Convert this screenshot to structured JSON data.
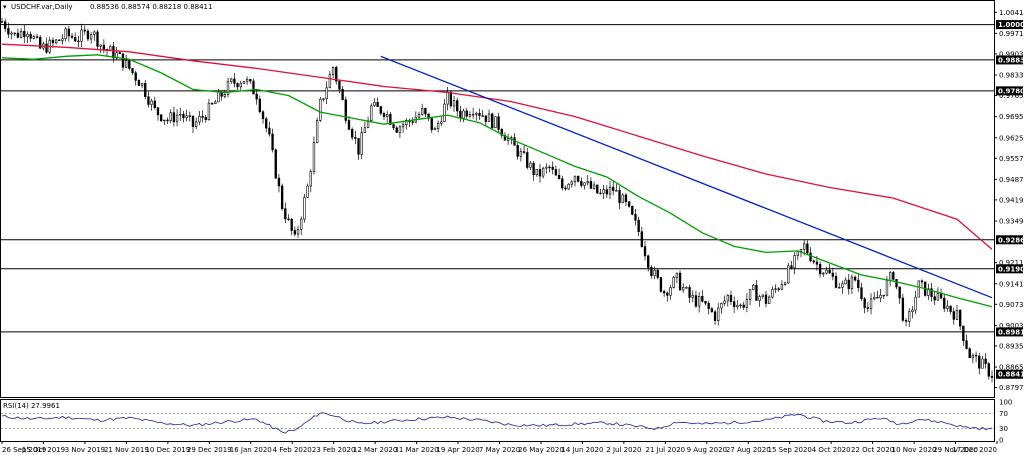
{
  "header": {
    "symbol": "USDCHF.var,Daily",
    "ohlc": "0.88536 0.88574 0.88218 0.88411"
  },
  "rsi": {
    "label": "RSI(14) 27.9961"
  },
  "colors": {
    "candle": "#000000",
    "ma_fast": "#00a000",
    "ma_slow": "#e0103a",
    "trend": "#0020d0",
    "rsi_line": "#1a1aa0",
    "level_bg": "#000000",
    "current_bg": "#000000"
  },
  "chart_data": {
    "type": "candlestick",
    "title": "USDCHF.var,Daily",
    "price_axis_ticks": [
      "1.00410",
      "0.99710",
      "0.99030",
      "0.98330",
      "0.97650",
      "0.96950",
      "0.96250",
      "0.95570",
      "0.94870",
      "0.94190",
      "0.93490",
      "0.92110",
      "0.91410",
      "0.90730",
      "0.90030",
      "0.89350",
      "0.88650",
      "0.87970"
    ],
    "horizontal_levels": [
      "1.00001",
      "0.98830",
      "0.97805",
      "0.92868",
      "0.91906",
      "0.89814"
    ],
    "current_price": "0.88411",
    "ylim": [
      0.8769,
      1.0075
    ],
    "x_labels": [
      "26 Sep 2019",
      "15 Oct 2019",
      "3 Nov 2019",
      "21 Nov 2019",
      "10 Dec 2019",
      "29 Dec 2019",
      "16 Jan 2020",
      "4 Feb 2020",
      "23 Feb 2020",
      "12 Mar 2020",
      "31 Mar 2020",
      "19 Apr 2020",
      "7 May 2020",
      "26 May 2020",
      "14 Jun 2020",
      "2 Jul 2020",
      "21 Jul 2020",
      "9 Aug 2020",
      "27 Aug 2020",
      "15 Sep 2020",
      "4 Oct 2020",
      "22 Oct 2020",
      "10 Nov 2020",
      "29 Nov 2020",
      "17 Dec 2020"
    ],
    "close_path": [
      [
        0,
        1.001
      ],
      [
        4,
        0.9965
      ],
      [
        8,
        0.9985
      ],
      [
        12,
        0.992
      ],
      [
        16,
        0.9935
      ],
      [
        20,
        0.9965
      ],
      [
        24,
        0.9955
      ],
      [
        28,
        0.998
      ],
      [
        32,
        0.992
      ],
      [
        36,
        0.99
      ],
      [
        40,
        0.9855
      ],
      [
        44,
        0.98
      ],
      [
        48,
        0.9715
      ],
      [
        52,
        0.9685
      ],
      [
        56,
        0.9705
      ],
      [
        60,
        0.9665
      ],
      [
        64,
        0.9705
      ],
      [
        68,
        0.9755
      ],
      [
        72,
        0.9805
      ],
      [
        76,
        0.982
      ],
      [
        80,
        0.977
      ],
      [
        84,
        0.962
      ],
      [
        88,
        0.94
      ],
      [
        92,
        0.9285
      ],
      [
        96,
        0.946
      ],
      [
        100,
        0.9735
      ],
      [
        104,
        0.986
      ],
      [
        108,
        0.9705
      ],
      [
        112,
        0.9585
      ],
      [
        116,
        0.9725
      ],
      [
        120,
        0.9715
      ],
      [
        124,
        0.966
      ],
      [
        128,
        0.968
      ],
      [
        132,
        0.971
      ],
      [
        136,
        0.9645
      ],
      [
        140,
        0.9755
      ],
      [
        144,
        0.9705
      ],
      [
        148,
        0.9725
      ],
      [
        152,
        0.9695
      ],
      [
        156,
        0.9665
      ],
      [
        160,
        0.9605
      ],
      [
        164,
        0.9555
      ],
      [
        168,
        0.95
      ],
      [
        172,
        0.9525
      ],
      [
        176,
        0.946
      ],
      [
        180,
        0.9505
      ],
      [
        184,
        0.9465
      ],
      [
        188,
        0.9435
      ],
      [
        192,
        0.9455
      ],
      [
        196,
        0.94
      ],
      [
        200,
        0.9315
      ],
      [
        204,
        0.9185
      ],
      [
        208,
        0.9115
      ],
      [
        212,
        0.9155
      ],
      [
        216,
        0.9095
      ],
      [
        220,
        0.9075
      ],
      [
        224,
        0.9035
      ],
      [
        228,
        0.91
      ],
      [
        232,
        0.9065
      ],
      [
        236,
        0.9115
      ],
      [
        240,
        0.9085
      ],
      [
        244,
        0.9135
      ],
      [
        248,
        0.9195
      ],
      [
        252,
        0.9265
      ],
      [
        256,
        0.9205
      ],
      [
        260,
        0.917
      ],
      [
        264,
        0.913
      ],
      [
        268,
        0.9155
      ],
      [
        272,
        0.906
      ],
      [
        276,
        0.9105
      ],
      [
        280,
        0.9175
      ],
      [
        284,
        0.8995
      ],
      [
        288,
        0.9135
      ],
      [
        292,
        0.9105
      ],
      [
        296,
        0.9075
      ],
      [
        300,
        0.9035
      ],
      [
        304,
        0.8905
      ],
      [
        308,
        0.887
      ],
      [
        311,
        0.8841
      ]
    ],
    "ma_fast_path": [
      [
        0,
        0.989
      ],
      [
        10,
        0.9885
      ],
      [
        20,
        0.9895
      ],
      [
        30,
        0.99
      ],
      [
        40,
        0.9885
      ],
      [
        50,
        0.984
      ],
      [
        60,
        0.9785
      ],
      [
        70,
        0.9775
      ],
      [
        80,
        0.9785
      ],
      [
        90,
        0.9765
      ],
      [
        100,
        0.971
      ],
      [
        110,
        0.969
      ],
      [
        120,
        0.967
      ],
      [
        130,
        0.9685
      ],
      [
        140,
        0.97
      ],
      [
        150,
        0.9675
      ],
      [
        160,
        0.962
      ],
      [
        170,
        0.9575
      ],
      [
        180,
        0.953
      ],
      [
        190,
        0.9495
      ],
      [
        200,
        0.943
      ],
      [
        210,
        0.9375
      ],
      [
        220,
        0.931
      ],
      [
        230,
        0.9265
      ],
      [
        240,
        0.9245
      ],
      [
        250,
        0.925
      ],
      [
        260,
        0.921
      ],
      [
        270,
        0.917
      ],
      [
        280,
        0.915
      ],
      [
        290,
        0.9125
      ],
      [
        300,
        0.9095
      ],
      [
        311,
        0.9065
      ]
    ],
    "ma_slow_path": [
      [
        0,
        0.9935
      ],
      [
        20,
        0.9925
      ],
      [
        40,
        0.991
      ],
      [
        60,
        0.988
      ],
      [
        80,
        0.9855
      ],
      [
        100,
        0.9825
      ],
      [
        120,
        0.9795
      ],
      [
        140,
        0.9775
      ],
      [
        160,
        0.9745
      ],
      [
        180,
        0.9695
      ],
      [
        200,
        0.963
      ],
      [
        220,
        0.9565
      ],
      [
        240,
        0.9505
      ],
      [
        260,
        0.946
      ],
      [
        280,
        0.9425
      ],
      [
        300,
        0.9355
      ],
      [
        311,
        0.9255
      ]
    ],
    "trend_path": [
      [
        119,
        0.9895
      ],
      [
        311,
        0.9095
      ]
    ],
    "rsi_ticks": [
      "100",
      "70",
      "30",
      "0"
    ],
    "rsi_levels": [
      70,
      30
    ],
    "rsi_path": [
      [
        0,
        62
      ],
      [
        10,
        55
      ],
      [
        20,
        60
      ],
      [
        30,
        52
      ],
      [
        40,
        58
      ],
      [
        50,
        45
      ],
      [
        60,
        38
      ],
      [
        70,
        48
      ],
      [
        80,
        55
      ],
      [
        88,
        20
      ],
      [
        92,
        25
      ],
      [
        100,
        72
      ],
      [
        104,
        65
      ],
      [
        112,
        42
      ],
      [
        120,
        48
      ],
      [
        130,
        55
      ],
      [
        140,
        60
      ],
      [
        150,
        52
      ],
      [
        160,
        40
      ],
      [
        170,
        38
      ],
      [
        180,
        42
      ],
      [
        190,
        45
      ],
      [
        200,
        35
      ],
      [
        206,
        30
      ],
      [
        212,
        48
      ],
      [
        220,
        42
      ],
      [
        230,
        46
      ],
      [
        240,
        52
      ],
      [
        250,
        68
      ],
      [
        258,
        50
      ],
      [
        266,
        45
      ],
      [
        276,
        58
      ],
      [
        282,
        42
      ],
      [
        288,
        55
      ],
      [
        296,
        46
      ],
      [
        302,
        34
      ],
      [
        308,
        30
      ],
      [
        311,
        28
      ]
    ]
  }
}
